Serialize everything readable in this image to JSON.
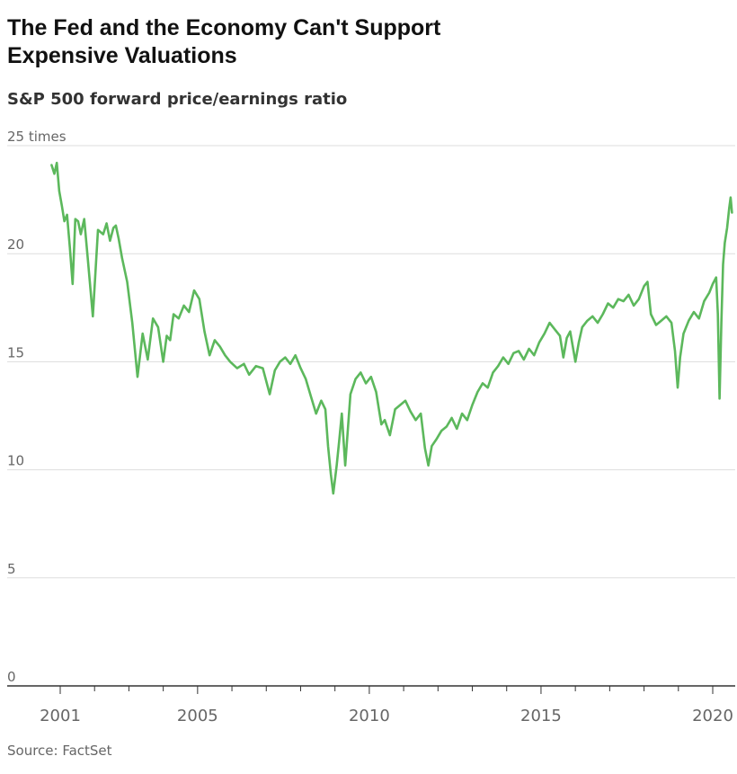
{
  "header": {
    "title_line1": "The Fed and  the Economy Can't Support",
    "title_line2": "Expensive Valuations",
    "subtitle": "S&P 500 forward price/earnings ratio"
  },
  "footer": {
    "source": "Source: FactSet"
  },
  "colors": {
    "line": "#5cb85c",
    "grid": "#dddddd",
    "axis": "#333333",
    "text": "#666666"
  },
  "chart_data": {
    "type": "line",
    "title": "S&P 500 forward price/earnings ratio",
    "xlabel": "",
    "ylabel": "",
    "y_unit": "times",
    "ylim": [
      0,
      25
    ],
    "xlim": [
      2000.5,
      2020.7
    ],
    "grid": true,
    "y_ticks": [
      0,
      5,
      10,
      15,
      20,
      25
    ],
    "y_tick_labels": [
      "0",
      "5",
      "10",
      "15",
      "20",
      "25 times"
    ],
    "x_ticks": [
      2001,
      2005,
      2010,
      2015,
      2020
    ],
    "x_tick_labels": [
      "2001",
      "2005",
      "2010",
      "2015",
      "2020"
    ],
    "series": [
      {
        "x": [
          2000.75,
          2000.83,
          2000.9,
          2000.97,
          2001.05,
          2001.12,
          2001.2,
          2001.28,
          2001.36,
          2001.44,
          2001.52,
          2001.6,
          2001.7,
          2001.8,
          2001.95,
          2002.1,
          2002.25,
          2002.35,
          2002.45,
          2002.55,
          2002.62,
          2002.7,
          2002.8,
          2002.95,
          2003.1,
          2003.25,
          2003.4,
          2003.55,
          2003.7,
          2003.85,
          2004.0,
          2004.1,
          2004.2,
          2004.3,
          2004.45,
          2004.6,
          2004.75,
          2004.9,
          2005.05,
          2005.2,
          2005.35,
          2005.5,
          2005.65,
          2005.8,
          2005.95,
          2006.15,
          2006.35,
          2006.5,
          2006.7,
          2006.9,
          2007.1,
          2007.25,
          2007.4,
          2007.55,
          2007.7,
          2007.85,
          2008.0,
          2008.15,
          2008.3,
          2008.45,
          2008.6,
          2008.72,
          2008.8,
          2008.88,
          2008.95,
          2009.05,
          2009.12,
          2009.2,
          2009.3,
          2009.45,
          2009.6,
          2009.75,
          2009.9,
          2010.05,
          2010.2,
          2010.35,
          2010.45,
          2010.6,
          2010.75,
          2010.9,
          2011.05,
          2011.2,
          2011.35,
          2011.5,
          2011.62,
          2011.72,
          2011.82,
          2011.95,
          2012.1,
          2012.25,
          2012.4,
          2012.55,
          2012.7,
          2012.85,
          2013.0,
          2013.15,
          2013.3,
          2013.45,
          2013.6,
          2013.75,
          2013.9,
          2014.05,
          2014.2,
          2014.35,
          2014.5,
          2014.65,
          2014.8,
          2014.95,
          2015.1,
          2015.25,
          2015.4,
          2015.55,
          2015.65,
          2015.75,
          2015.85,
          2016.0,
          2016.1,
          2016.2,
          2016.35,
          2016.5,
          2016.65,
          2016.8,
          2016.95,
          2017.1,
          2017.25,
          2017.4,
          2017.55,
          2017.7,
          2017.85,
          2018.0,
          2018.1,
          2018.2,
          2018.35,
          2018.5,
          2018.65,
          2018.8,
          2018.9,
          2018.98,
          2019.05,
          2019.15,
          2019.3,
          2019.45,
          2019.6,
          2019.75,
          2019.9,
          2020.0,
          2020.1,
          2020.15,
          2020.2,
          2020.25,
          2020.3,
          2020.35,
          2020.42,
          2020.48,
          2020.52,
          2020.56
        ],
        "values": [
          24.1,
          23.7,
          24.2,
          22.9,
          22.2,
          21.5,
          21.8,
          20.3,
          18.6,
          21.6,
          21.5,
          20.9,
          21.6,
          19.8,
          17.1,
          21.1,
          20.9,
          21.4,
          20.6,
          21.2,
          21.3,
          20.7,
          19.8,
          18.7,
          16.8,
          14.3,
          16.3,
          15.1,
          17.0,
          16.6,
          15.0,
          16.2,
          16.0,
          17.2,
          17.0,
          17.6,
          17.3,
          18.3,
          17.9,
          16.4,
          15.3,
          16.0,
          15.7,
          15.3,
          15.0,
          14.7,
          14.9,
          14.4,
          14.8,
          14.7,
          13.5,
          14.6,
          15.0,
          15.2,
          14.9,
          15.3,
          14.7,
          14.2,
          13.4,
          12.6,
          13.2,
          12.8,
          11.1,
          9.8,
          8.9,
          10.2,
          11.3,
          12.6,
          10.2,
          13.5,
          14.2,
          14.5,
          14.0,
          14.3,
          13.6,
          12.1,
          12.3,
          11.6,
          12.8,
          13.0,
          13.2,
          12.7,
          12.3,
          12.6,
          11.0,
          10.2,
          11.1,
          11.4,
          11.8,
          12.0,
          12.4,
          11.9,
          12.6,
          12.3,
          13.0,
          13.6,
          14.0,
          13.8,
          14.5,
          14.8,
          15.2,
          14.9,
          15.4,
          15.5,
          15.1,
          15.6,
          15.3,
          15.9,
          16.3,
          16.8,
          16.5,
          16.2,
          15.2,
          16.1,
          16.4,
          15.0,
          15.9,
          16.6,
          16.9,
          17.1,
          16.8,
          17.2,
          17.7,
          17.5,
          17.9,
          17.8,
          18.1,
          17.6,
          17.9,
          18.5,
          18.7,
          17.2,
          16.7,
          16.9,
          17.1,
          16.8,
          15.5,
          13.8,
          15.2,
          16.3,
          16.9,
          17.3,
          17.0,
          17.8,
          18.2,
          18.6,
          18.9,
          17.2,
          13.3,
          16.8,
          19.5,
          20.5,
          21.2,
          22.1,
          22.6,
          21.9
        ]
      }
    ]
  }
}
